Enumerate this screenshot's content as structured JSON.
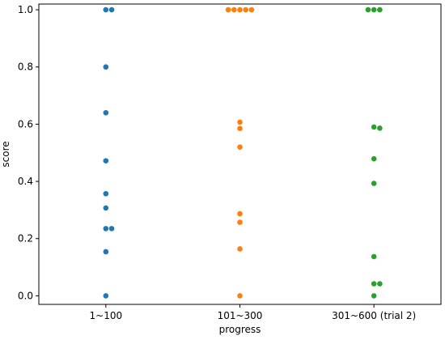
{
  "chart_data": {
    "type": "scatter",
    "title": "",
    "xlabel": "progress",
    "ylabel": "score",
    "categories": [
      "1~100",
      "101~300",
      "301~600 (trial 2)"
    ],
    "ylim": [
      -0.03,
      1.02
    ],
    "yticks": [
      "0.0",
      "0.2",
      "0.4",
      "0.6",
      "0.8",
      "1.0"
    ],
    "grid": false,
    "legend": "none",
    "series": [
      {
        "category": "1~100",
        "color": "#1f77b4",
        "values": [
          1.0,
          1.0,
          0.8,
          0.64,
          0.472,
          0.357,
          0.307,
          0.235,
          0.235,
          0.154,
          0.0
        ]
      },
      {
        "category": "101~300",
        "color": "#ff7f0e",
        "values": [
          1.0,
          1.0,
          1.0,
          1.0,
          1.0,
          0.607,
          0.585,
          0.52,
          0.287,
          0.257,
          0.164,
          0.0
        ]
      },
      {
        "category": "301~600 (trial 2)",
        "color": "#2ca02c",
        "values": [
          1.0,
          1.0,
          1.0,
          0.59,
          0.586,
          0.479,
          0.393,
          0.137,
          0.042,
          0.042,
          0.0
        ]
      }
    ]
  }
}
